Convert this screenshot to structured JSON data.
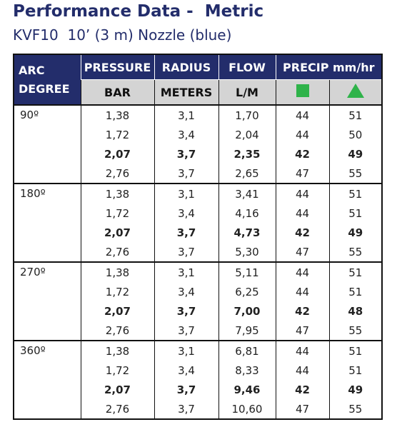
{
  "header": {
    "title": "Performance Data -  Metric",
    "subtitle": "KVF10  10’ (3 m) Nozzle (blue)"
  },
  "table": {
    "arc_header": [
      "ARC",
      "DEGREE"
    ],
    "columns": [
      "PRESSURE",
      "RADIUS",
      "FLOW",
      "PRECIP mm/hr"
    ],
    "units": [
      "BAR",
      "METERS",
      "L/M"
    ],
    "groups": [
      {
        "arc": "90º",
        "rows": [
          [
            "1,38",
            "3,1",
            "1,70",
            "44",
            "51"
          ],
          [
            "1,72",
            "3,4",
            "2,04",
            "44",
            "50"
          ],
          [
            "2,07",
            "3,7",
            "2,35",
            "42",
            "49"
          ],
          [
            "2,76",
            "3,7",
            "2,65",
            "47",
            "55"
          ]
        ]
      },
      {
        "arc": "180º",
        "rows": [
          [
            "1,38",
            "3,1",
            "3,41",
            "44",
            "51"
          ],
          [
            "1,72",
            "3,4",
            "4,16",
            "44",
            "51"
          ],
          [
            "2,07",
            "3,7",
            "4,73",
            "42",
            "49"
          ],
          [
            "2,76",
            "3,7",
            "5,30",
            "47",
            "55"
          ]
        ]
      },
      {
        "arc": "270º",
        "rows": [
          [
            "1,38",
            "3,1",
            "5,11",
            "44",
            "51"
          ],
          [
            "1,72",
            "3,4",
            "6,25",
            "44",
            "51"
          ],
          [
            "2,07",
            "3,7",
            "7,00",
            "42",
            "48"
          ],
          [
            "2,76",
            "3,7",
            "7,95",
            "47",
            "55"
          ]
        ]
      },
      {
        "arc": "360º",
        "rows": [
          [
            "1,38",
            "3,1",
            "6,81",
            "44",
            "51"
          ],
          [
            "1,72",
            "3,4",
            "8,33",
            "44",
            "51"
          ],
          [
            "2,07",
            "3,7",
            "9,46",
            "42",
            "49"
          ],
          [
            "2,76",
            "3,7",
            "10,60",
            "47",
            "55"
          ]
        ]
      }
    ]
  }
}
